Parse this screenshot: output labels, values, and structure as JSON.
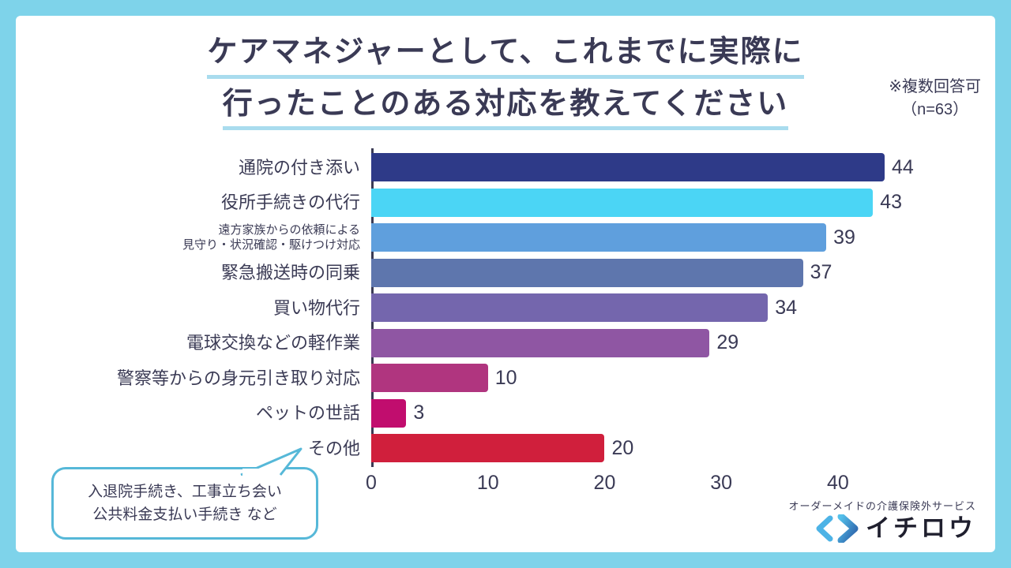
{
  "page": {
    "background_color": "#7ed3ea",
    "card_color": "#ffffff"
  },
  "header": {
    "title_line1": "ケアマネジャーとして、これまでに実際に",
    "title_line2": "行ったことのある対応を教えてください",
    "note_line1": "※複数回答可",
    "note_line2": "（n=63）",
    "underline_color": "#a9dcee"
  },
  "chart_data": {
    "type": "bar",
    "orientation": "horizontal",
    "title": "ケアマネジャーとして、これまでに実際に行ったことのある対応を教えてください",
    "note": "※複数回答可（n=63）",
    "xmax": 44,
    "xticks": [
      0,
      10,
      20,
      30,
      40
    ],
    "grid": false,
    "legend": "none",
    "rows": [
      {
        "label": "通院の付き添い",
        "value": 44,
        "color": "#2e3a88"
      },
      {
        "label": "役所手続きの代行",
        "value": 43,
        "color": "#4bd5f5"
      },
      {
        "label": "遠方家族からの依頼による",
        "label2": "見守り・状況確認・駆けつけ対応",
        "value": 39,
        "color": "#5f9fdd"
      },
      {
        "label": "緊急搬送時の同乗",
        "value": 37,
        "color": "#5e76ad"
      },
      {
        "label": "買い物代行",
        "value": 34,
        "color": "#7466ad"
      },
      {
        "label": "電球交換などの軽作業",
        "value": 29,
        "color": "#8f56a3"
      },
      {
        "label": "警察等からの身元引き取り対応",
        "value": 10,
        "color": "#b0357f"
      },
      {
        "label": "ペットの世話",
        "value": 3,
        "color": "#c10d6e"
      },
      {
        "label": "その他",
        "value": 20,
        "color": "#d01f3c"
      }
    ]
  },
  "callout": {
    "line1": "入退院手続き、工事立ち会い",
    "line2": "公共料金支払い手続き など",
    "border_color": "#56b8d8"
  },
  "footer": {
    "tagline": "オーダーメイドの介護保険外サービス",
    "brand": "イチロウ",
    "chevron_light_color": "#4db3e6",
    "chevron_dark_color": "#2b5fa8"
  }
}
